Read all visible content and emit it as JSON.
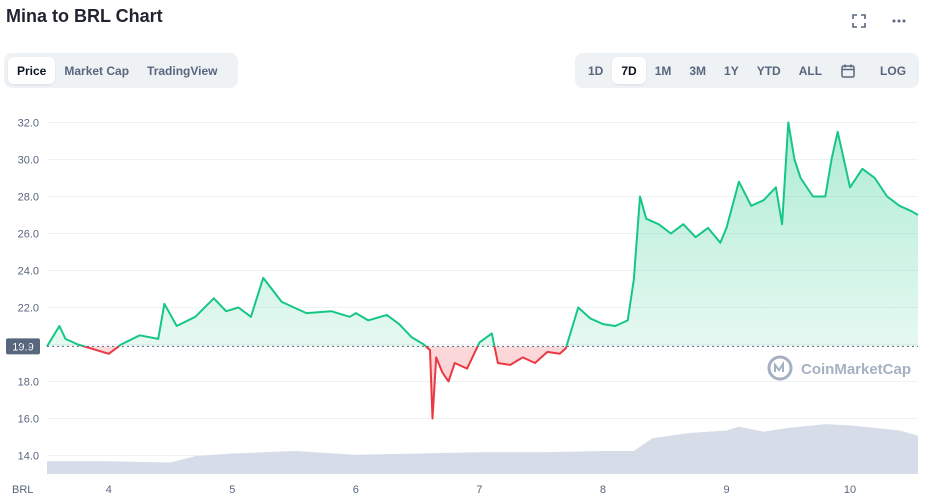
{
  "header": {
    "title": "Mina to BRL Chart"
  },
  "tabs": [
    {
      "label": "Price",
      "active": true
    },
    {
      "label": "Market Cap",
      "active": false
    },
    {
      "label": "TradingView",
      "active": false
    }
  ],
  "ranges": [
    {
      "label": "1D",
      "active": false
    },
    {
      "label": "7D",
      "active": true
    },
    {
      "label": "1M",
      "active": false
    },
    {
      "label": "3M",
      "active": false
    },
    {
      "label": "1Y",
      "active": false
    },
    {
      "label": "YTD",
      "active": false
    },
    {
      "label": "ALL",
      "active": false
    }
  ],
  "log_label": "LOG",
  "watermark": "CoinMarketCap",
  "colors": {
    "up": "#16c784",
    "down": "#ea3943",
    "volume": "#cfd6e4",
    "baseline": "#58667e"
  },
  "chart_data": {
    "type": "line",
    "currency_label": "BRL",
    "baseline": 19.9,
    "baseline_label": "19.9",
    "ylim": [
      13,
      33
    ],
    "y_ticks": [
      14.0,
      16.0,
      18.0,
      20.0,
      22.0,
      24.0,
      26.0,
      28.0,
      30.0,
      32.0
    ],
    "y_tick_labels": [
      "14.0",
      "16.0",
      "18.0",
      "20.0",
      "22.0",
      "24.0",
      "26.0",
      "28.0",
      "30.0",
      "32.0"
    ],
    "x_tick_labels": [
      "4",
      "5",
      "6",
      "7",
      "8",
      "9",
      "10"
    ],
    "x_ticks": [
      4,
      5,
      6,
      7,
      8,
      9,
      10
    ],
    "xlim": [
      3.5,
      10.55
    ],
    "series": [
      {
        "x": [
          3.5,
          3.6,
          3.65,
          3.75,
          3.85,
          4.0,
          4.1,
          4.25,
          4.4,
          4.45,
          4.55,
          4.7,
          4.85,
          4.95,
          5.05,
          5.15,
          5.25,
          5.4,
          5.6,
          5.8,
          5.95,
          6.0,
          6.1,
          6.25,
          6.35,
          6.45,
          6.55,
          6.6,
          6.62,
          6.65,
          6.7,
          6.75,
          6.8,
          6.9,
          7.0,
          7.1,
          7.15,
          7.25,
          7.35,
          7.45,
          7.55,
          7.65,
          7.7,
          7.8,
          7.9,
          8.0,
          8.1,
          8.2,
          8.25,
          8.3,
          8.35,
          8.45,
          8.55,
          8.65,
          8.75,
          8.85,
          8.95,
          9.0,
          9.1,
          9.2,
          9.3,
          9.4,
          9.45,
          9.5,
          9.55,
          9.6,
          9.7,
          9.8,
          9.85,
          9.9,
          10.0,
          10.1,
          10.2,
          10.3,
          10.4,
          10.5,
          10.55
        ],
        "values": [
          19.9,
          21.0,
          20.3,
          20.0,
          19.8,
          19.5,
          20.0,
          20.5,
          20.3,
          22.2,
          21.0,
          21.5,
          22.5,
          21.8,
          22.0,
          21.5,
          23.6,
          22.3,
          21.7,
          21.8,
          21.5,
          21.7,
          21.3,
          21.6,
          21.1,
          20.4,
          20.0,
          19.7,
          16.0,
          19.3,
          18.5,
          18.0,
          19.0,
          18.7,
          20.1,
          20.6,
          19.0,
          18.9,
          19.3,
          19.0,
          19.6,
          19.5,
          19.8,
          22.0,
          21.4,
          21.1,
          21.0,
          21.3,
          23.5,
          28.0,
          26.8,
          26.5,
          26.0,
          26.5,
          25.8,
          26.3,
          25.5,
          26.3,
          28.8,
          27.5,
          27.8,
          28.5,
          26.5,
          32.0,
          30.0,
          29.0,
          28.0,
          28.0,
          30.0,
          31.5,
          28.5,
          29.5,
          29.0,
          28.0,
          27.5,
          27.2,
          27.0
        ]
      }
    ],
    "volume": {
      "x": [
        3.5,
        4.0,
        4.5,
        4.7,
        5.0,
        5.5,
        6.0,
        6.5,
        7.0,
        7.5,
        8.0,
        8.25,
        8.4,
        8.7,
        9.0,
        9.1,
        9.3,
        9.5,
        9.8,
        10.0,
        10.2,
        10.4,
        10.55
      ],
      "values": [
        1.0,
        1.0,
        0.9,
        1.4,
        1.6,
        1.8,
        1.5,
        1.6,
        1.7,
        1.7,
        1.8,
        1.8,
        2.8,
        3.2,
        3.4,
        3.7,
        3.3,
        3.6,
        3.9,
        3.8,
        3.6,
        3.4,
        3.0
      ],
      "max": 5
    },
    "grid": true,
    "log_scale": false
  }
}
